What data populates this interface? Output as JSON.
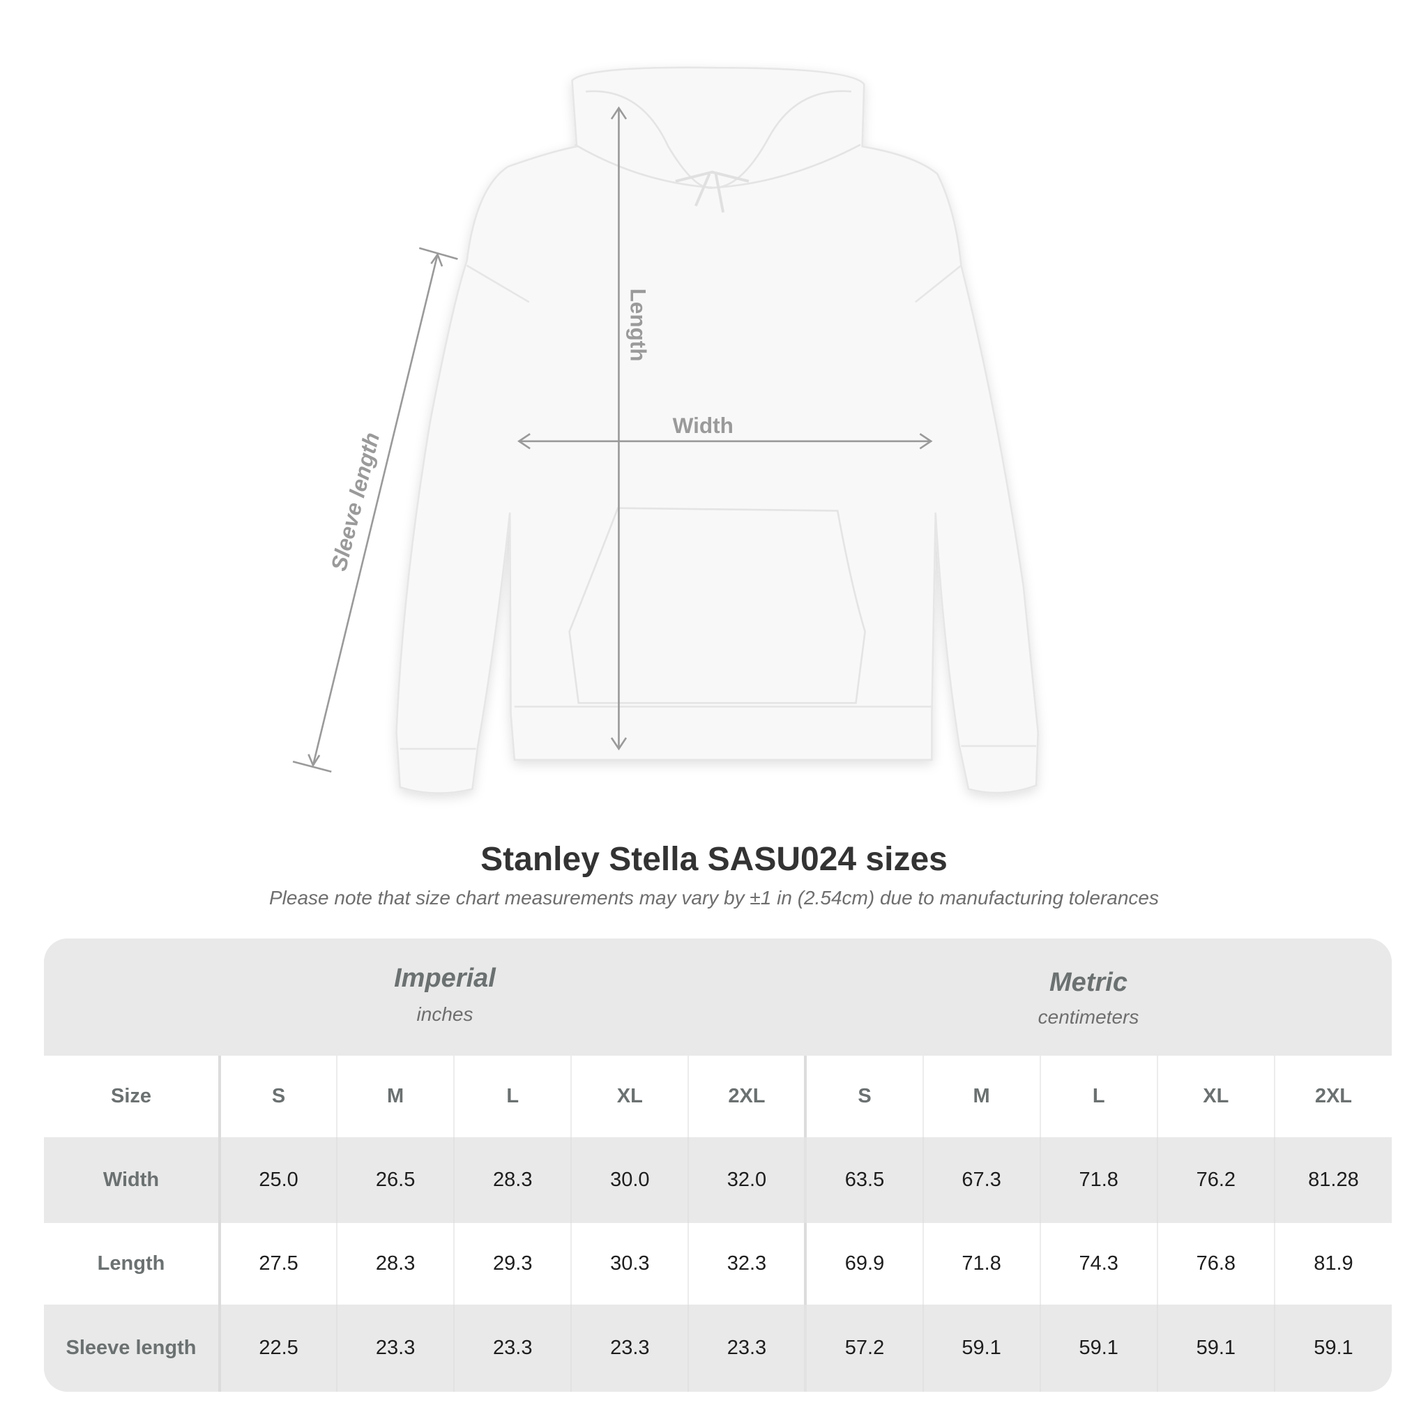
{
  "diagram": {
    "length_label": "Length",
    "width_label": "Width",
    "sleeve_label": "Sleeve length"
  },
  "title": "Stanley Stella SASU024 sizes",
  "note": "Please note that size chart measurements may vary by ±1 in (2.54cm) due to manufacturing tolerances",
  "table": {
    "imperial": {
      "name": "Imperial",
      "unit": "inches"
    },
    "metric": {
      "name": "Metric",
      "unit": "centimeters"
    },
    "size_label": "Size",
    "sizes": [
      "S",
      "M",
      "L",
      "XL",
      "2XL"
    ],
    "rows": [
      {
        "label": "Width",
        "imperial": [
          "25.0",
          "26.5",
          "28.3",
          "30.0",
          "32.0"
        ],
        "metric": [
          "63.5",
          "67.3",
          "71.8",
          "76.2",
          "81.28"
        ]
      },
      {
        "label": "Length",
        "imperial": [
          "27.5",
          "28.3",
          "29.3",
          "30.3",
          "32.3"
        ],
        "metric": [
          "69.9",
          "71.8",
          "74.3",
          "76.8",
          "81.9"
        ]
      },
      {
        "label": "Sleeve length",
        "imperial": [
          "22.5",
          "23.3",
          "23.3",
          "23.3",
          "23.3"
        ],
        "metric": [
          "57.2",
          "59.1",
          "59.1",
          "59.1",
          "59.1"
        ]
      }
    ]
  },
  "colors": {
    "header_bg": "#e9e9e9",
    "label": "#6b7070",
    "measure_line": "#9a9a9a"
  }
}
